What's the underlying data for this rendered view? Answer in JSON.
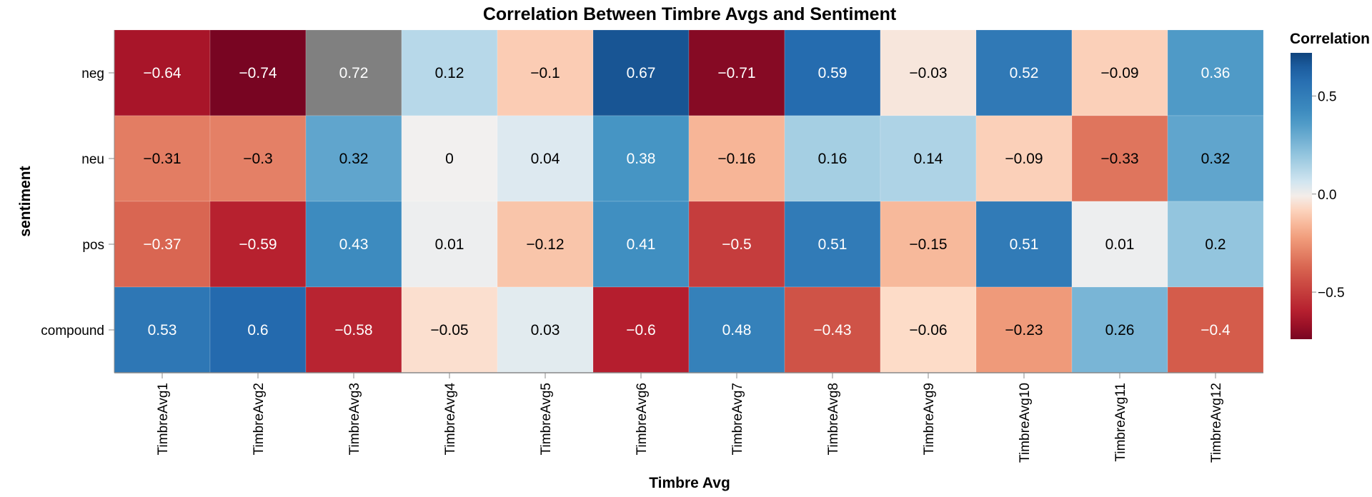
{
  "chart_data": {
    "type": "heatmap",
    "title": "Correlation Between Timbre Avgs and Sentiment",
    "xlabel": "Timbre Avg",
    "ylabel": "sentiment",
    "x": [
      "TimbreAvg1",
      "TimbreAvg2",
      "TimbreAvg3",
      "TimbreAvg4",
      "TimbreAvg5",
      "TimbreAvg6",
      "TimbreAvg7",
      "TimbreAvg8",
      "TimbreAvg9",
      "TimbreAvg10",
      "TimbreAvg11",
      "TimbreAvg12"
    ],
    "y": [
      "neg",
      "neu",
      "pos",
      "compound"
    ],
    "values": [
      [
        -0.64,
        -0.74,
        0.72,
        0.12,
        -0.1,
        0.67,
        -0.71,
        0.59,
        -0.03,
        0.52,
        -0.09,
        0.36
      ],
      [
        -0.31,
        -0.3,
        0.32,
        0,
        0.04,
        0.38,
        -0.16,
        0.16,
        0.14,
        -0.09,
        -0.33,
        0.32
      ],
      [
        -0.37,
        -0.59,
        0.43,
        0.01,
        -0.12,
        0.41,
        -0.5,
        0.51,
        -0.15,
        0.51,
        0.01,
        0.2
      ],
      [
        0.53,
        0.6,
        -0.58,
        -0.05,
        0.03,
        -0.6,
        0.48,
        -0.43,
        -0.06,
        -0.23,
        0.26,
        -0.4
      ]
    ],
    "cell_labels": [
      [
        "−0.64",
        "−0.74",
        "0.72",
        "0.12",
        "−0.1",
        "0.67",
        "−0.71",
        "0.59",
        "−0.03",
        "0.52",
        "−0.09",
        "0.36"
      ],
      [
        "−0.31",
        "−0.3",
        "0.32",
        "0",
        "0.04",
        "0.38",
        "−0.16",
        "0.16",
        "0.14",
        "−0.09",
        "−0.33",
        "0.32"
      ],
      [
        "−0.37",
        "−0.59",
        "0.43",
        "0.01",
        "−0.12",
        "0.41",
        "−0.5",
        "0.51",
        "−0.15",
        "0.51",
        "0.01",
        "0.2"
      ],
      [
        "0.53",
        "0.6",
        "−0.58",
        "−0.05",
        "0.03",
        "−0.6",
        "0.48",
        "−0.43",
        "−0.06",
        "−0.23",
        "0.26",
        "−0.4"
      ]
    ],
    "highlight_cell": {
      "row": 0,
      "col": 2,
      "color": "#808080"
    },
    "color_domain": [
      -0.74,
      0.72
    ],
    "colormap": "red-blue diverging",
    "legend": {
      "title": "Correlation",
      "ticks": [
        0.5,
        0.0,
        -0.5
      ],
      "tick_labels": [
        "0.5",
        "0.0",
        "−0.5"
      ],
      "placement": "right"
    }
  }
}
